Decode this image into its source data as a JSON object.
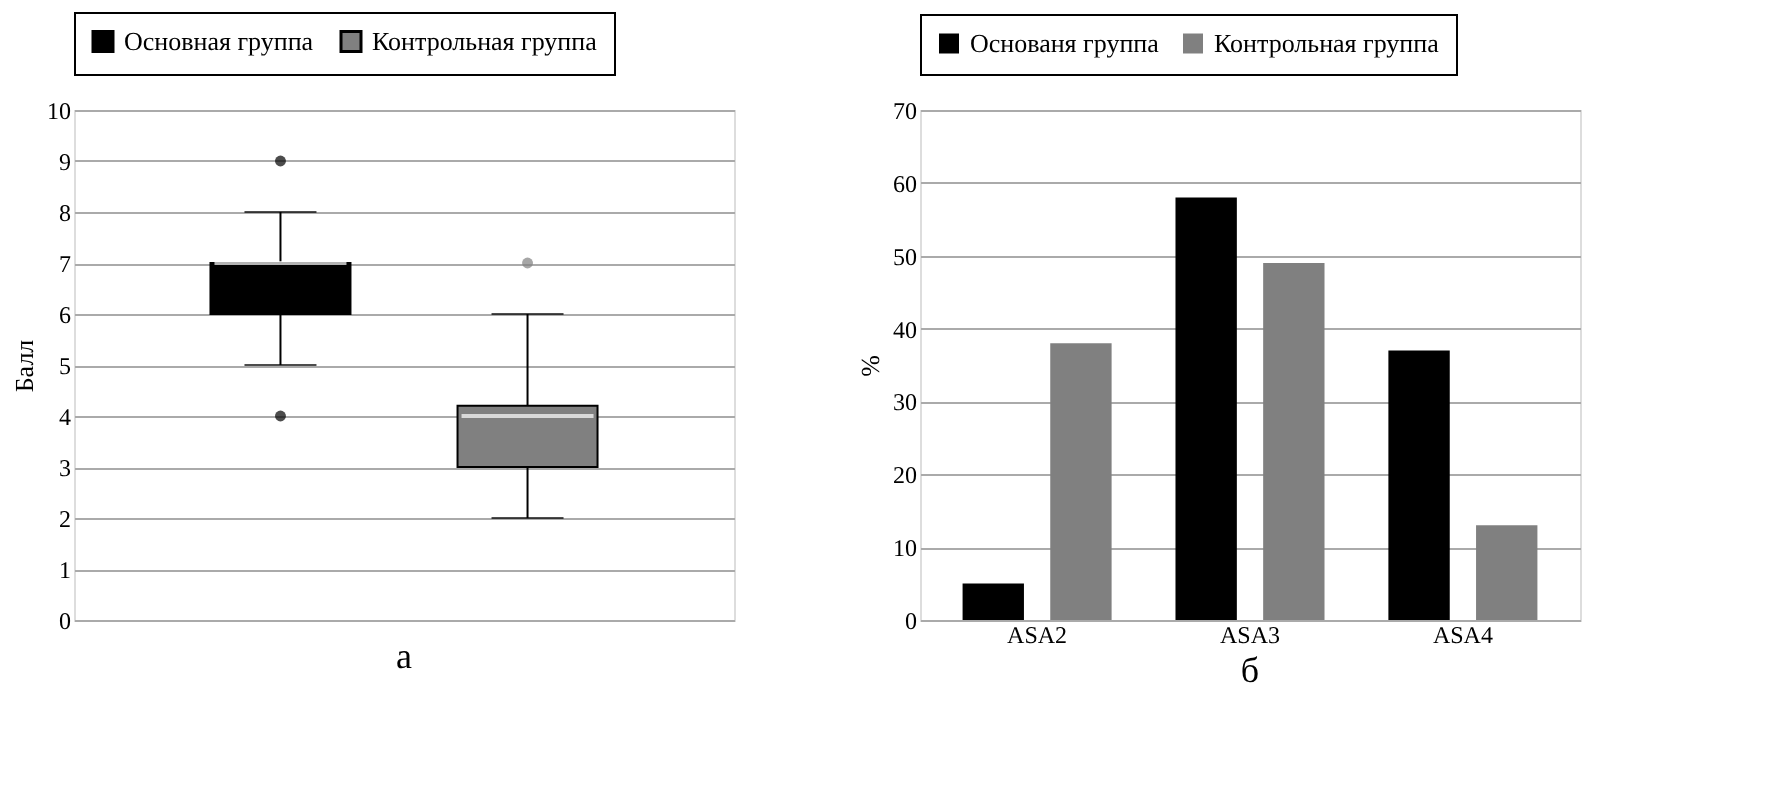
{
  "chart_data": [
    {
      "type": "box",
      "title": "а",
      "ylabel": "Балл",
      "categories": [
        null
      ],
      "ylim": [
        0,
        10
      ],
      "yticks": [
        0,
        1,
        2,
        3,
        4,
        5,
        6,
        7,
        8,
        9,
        10
      ],
      "grid": "y",
      "legend": "top",
      "tick_labels": "y",
      "series": [
        {
          "name": "Основная группа",
          "color": "#000000",
          "boxes": [
            {
              "low": 5,
              "q1": 6,
              "median": 7,
              "q3": 7,
              "high": 8,
              "outliers": [
                9,
                4
              ]
            }
          ]
        },
        {
          "name": "Контрольная группа",
          "color": "#808080",
          "boxes": [
            {
              "low": 2,
              "q1": 3,
              "median": 4,
              "q3": 4.2,
              "high": 6,
              "outliers": [
                7
              ]
            }
          ]
        }
      ]
    },
    {
      "type": "bar",
      "title": "б",
      "ylabel": "%",
      "categories": [
        "ASA2",
        "ASA3",
        "ASA4"
      ],
      "ylim": [
        0,
        70
      ],
      "yticks": [
        0,
        10,
        20,
        30,
        40,
        50,
        60,
        70
      ],
      "grid": "y",
      "legend": "top",
      "series": [
        {
          "name": "Основаня группа",
          "color": "#000000",
          "values": [
            5,
            58,
            37
          ]
        },
        {
          "name": "Контрольная группа",
          "color": "#808080",
          "values": [
            38,
            49,
            13
          ]
        }
      ]
    }
  ]
}
